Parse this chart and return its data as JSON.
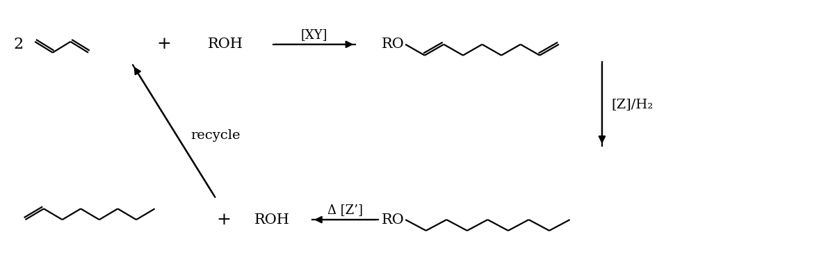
{
  "bg_color": "#ffffff",
  "line_color": "#000000",
  "figsize": [
    11.91,
    3.77
  ],
  "dpi": 100,
  "label_2": "2",
  "label_plus1": "+",
  "label_ROH1": "ROH",
  "label_XY": "[XY]",
  "label_RO1": "RO",
  "label_ZH2": "[Z]/H₂",
  "label_delta_Z": "Δ [Z’]",
  "label_plus2": "+",
  "label_ROH2": "ROH",
  "label_RO2": "RO",
  "label_recycle": "recycle",
  "font_size": 14
}
